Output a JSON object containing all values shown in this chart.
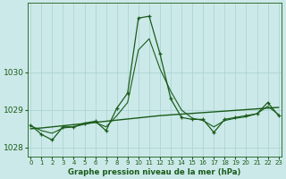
{
  "title": "Graphe pression niveau de la mer (hPa)",
  "bg_color": "#cce9e9",
  "grid_color": "#add4d4",
  "line_color": "#1a5c1a",
  "x_values": [
    0,
    1,
    2,
    3,
    4,
    5,
    6,
    7,
    8,
    9,
    10,
    11,
    12,
    13,
    14,
    15,
    16,
    17,
    18,
    19,
    20,
    21,
    22,
    23
  ],
  "y_main": [
    1028.6,
    1028.35,
    1028.2,
    1028.55,
    1028.55,
    1028.65,
    1028.7,
    1028.45,
    1029.05,
    1029.45,
    1031.45,
    1031.5,
    1030.5,
    1029.3,
    1028.8,
    1028.75,
    1028.75,
    1028.4,
    1028.75,
    1028.8,
    1028.85,
    1028.9,
    1029.2,
    1028.85
  ],
  "y_trend": [
    1028.5,
    1028.52,
    1028.55,
    1028.58,
    1028.61,
    1028.64,
    1028.67,
    1028.7,
    1028.73,
    1028.76,
    1028.79,
    1028.82,
    1028.85,
    1028.87,
    1028.89,
    1028.91,
    1028.93,
    1028.95,
    1028.97,
    1028.99,
    1029.01,
    1029.03,
    1029.05,
    1029.07
  ],
  "y_smooth": [
    1028.58,
    1028.45,
    1028.38,
    1028.52,
    1028.55,
    1028.62,
    1028.67,
    1028.55,
    1028.85,
    1029.2,
    1030.6,
    1030.9,
    1030.1,
    1029.5,
    1029.0,
    1028.78,
    1028.72,
    1028.55,
    1028.72,
    1028.78,
    1028.82,
    1028.9,
    1029.1,
    1028.88
  ],
  "ylim": [
    1027.75,
    1031.85
  ],
  "yticks": [
    1028,
    1029,
    1030
  ],
  "xlim": [
    -0.3,
    23.3
  ],
  "figsize": [
    3.2,
    2.0
  ],
  "dpi": 100
}
